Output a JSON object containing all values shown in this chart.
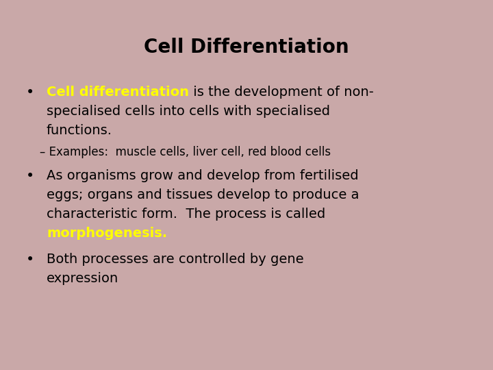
{
  "title": "Cell Differentiation",
  "background_color": "#C9A8A8",
  "title_color": "#000000",
  "title_fontsize": 20,
  "title_fontweight": "bold",
  "bullet_color": "#000000",
  "highlight_color": "#FFFF00",
  "bullet_fontsize": 14,
  "sub_fontsize": 12,
  "bullet1_highlighted": "Cell differentiation",
  "subbullet": "– Examples:  muscle cells, liver cell, red blood cells",
  "bullet2_highlighted": "morphogenesis.",
  "bullet3_line1": "Both processes are controlled by gene",
  "bullet3_line2": "expression",
  "bg": "#C9A8A8"
}
